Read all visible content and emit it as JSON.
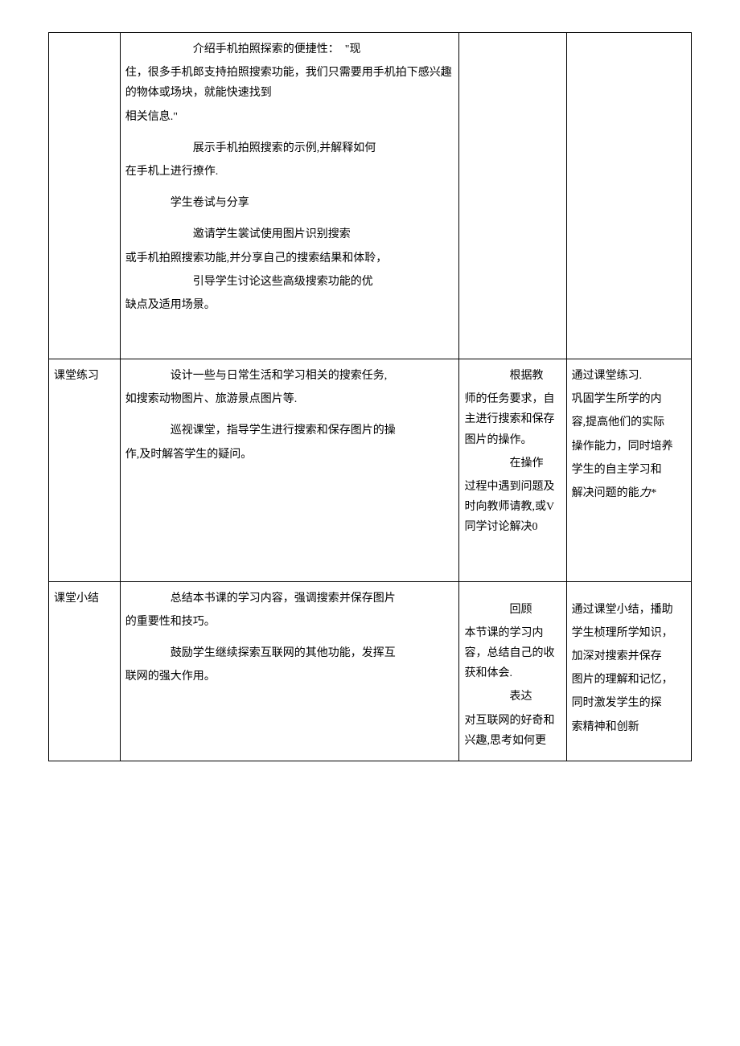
{
  "rows": [
    {
      "col1": "",
      "col2": {
        "blocks": [
          {
            "cls": "indent-large para",
            "text": "介绍手机拍照探索的便捷性：　\"现"
          },
          {
            "cls": "para",
            "text": "住，很多手机郎支持拍照搜索功能，我们只需要用手机拍下感兴趣的物体或场块，就能快速找到"
          },
          {
            "cls": "para",
            "text": "相关信息.\""
          },
          {
            "cls": "indent-large para section-gap",
            "text": "展示手机拍照搜索的示例,并解释如何"
          },
          {
            "cls": "para",
            "text": "在手机上进行撩作."
          },
          {
            "cls": "indent-med para section-gap",
            "text": "学生卷试与分享"
          },
          {
            "cls": "indent-large para section-gap",
            "text": "邀请学生裳试使用图片识别搜索"
          },
          {
            "cls": "para",
            "text": "或手机拍照搜索功能,并分享自己的搜索结果和体聆，"
          },
          {
            "cls": "indent-large para",
            "text": "引导学生讨论这些高级搜索功能的优"
          },
          {
            "cls": "para",
            "text": "缺点及适用场景。"
          }
        ]
      },
      "col3": "",
      "col4": ""
    },
    {
      "col1": "课堂练习",
      "col2": {
        "blocks": [
          {
            "cls": "indent-med para",
            "text": "设计一些与日常生活和学习相关的搜索任务,"
          },
          {
            "cls": "para",
            "text": "如搜索动物图片、旅游景点图片等."
          },
          {
            "cls": "indent-med para section-gap",
            "text": "巡视课堂，指导学生进行搜索和保存图片的操"
          },
          {
            "cls": "para",
            "text": "作,及时解答学生的疑问。"
          }
        ]
      },
      "col3": {
        "blocks": [
          {
            "cls": "indent para",
            "text": "　　根据教"
          },
          {
            "cls": "para",
            "text": "师的任务要求，自主进行搜索和保存图片的操作。"
          },
          {
            "cls": "indent para",
            "text": "　　在操作"
          },
          {
            "cls": "para",
            "text": "过程中遇到问题及时向教师请教,或V同学讨论解决0"
          }
        ]
      },
      "col4": {
        "blocks": [
          {
            "cls": "para",
            "text": "通过课堂练习."
          },
          {
            "cls": "para",
            "text": "巩固学生所学的内"
          },
          {
            "cls": "para",
            "text": "容,提高他们的实际"
          },
          {
            "cls": "para",
            "text": "操作能力，同时培养"
          },
          {
            "cls": "para",
            "text": "学生的自主学习和"
          },
          {
            "cls": "para",
            "text": "解决问题的能<span class=\"italic\">力*</span>"
          }
        ]
      }
    },
    {
      "col1": "课堂小结",
      "col2": {
        "blocks": [
          {
            "cls": "indent-med para",
            "text": "总结本书课的学习内容，强调搜索并保存图片"
          },
          {
            "cls": "para",
            "text": "的重要性和技巧。"
          },
          {
            "cls": "indent-med para section-gap",
            "text": "鼓励学生继续探索互联网的其他功能，发挥互"
          },
          {
            "cls": "para",
            "text": "联网的强大作用。"
          }
        ]
      },
      "col3": {
        "blocks": [
          {
            "cls": "indent para section-gap",
            "text": "　　回顾"
          },
          {
            "cls": "para",
            "text": "本节课的学习内容，总结自己的收获和体会."
          },
          {
            "cls": "indent para",
            "text": "　　表达"
          },
          {
            "cls": "para",
            "text": "对互联网的好奇和兴趣,思考如何更"
          }
        ]
      },
      "col4": {
        "blocks": [
          {
            "cls": "para section-gap",
            "text": "通过课堂小结，播助"
          },
          {
            "cls": "para",
            "text": "学生桢理所学知识，"
          },
          {
            "cls": "para",
            "text": "加深对搜索并保存"
          },
          {
            "cls": "para",
            "text": "图片的理解和记忆，"
          },
          {
            "cls": "para",
            "text": "同时激发学生的探"
          },
          {
            "cls": "para",
            "text": "索精神和创新"
          }
        ]
      }
    }
  ]
}
